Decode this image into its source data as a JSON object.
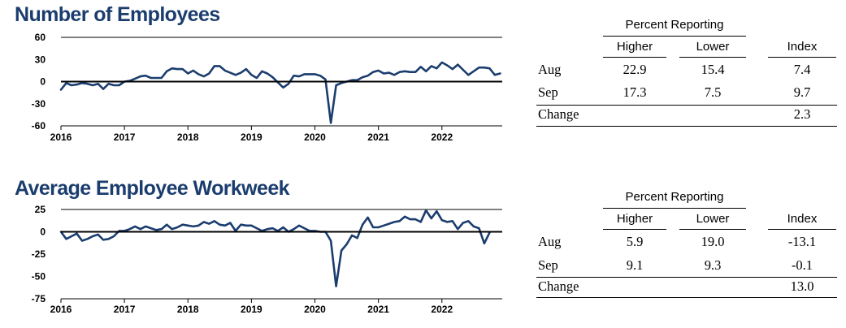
{
  "panels": [
    {
      "title": "Number of Employees",
      "chart_data": {
        "type": "line",
        "title": "Number of Employees",
        "xlabel": "",
        "ylabel": "",
        "ylim": [
          -60,
          60
        ],
        "yticks": [
          60,
          30,
          0,
          -30,
          -60
        ],
        "xlim": [
          2016.0,
          2022.95
        ],
        "xticks": [
          "2016",
          "2017",
          "2018",
          "2019",
          "2020",
          "2021",
          "2022"
        ],
        "zero_line": true,
        "series_color": "#1b3d6e",
        "x_start": "2016-01",
        "x_step": "month",
        "series": [
          {
            "values": [
              -11,
              -2,
              -5,
              -4,
              -2,
              -3,
              -5,
              -3,
              -10,
              -3,
              -5,
              -5,
              0,
              1,
              4,
              7,
              8,
              5,
              5,
              5,
              14,
              18,
              17,
              17,
              11,
              15,
              10,
              7,
              11,
              21,
              21,
              15,
              12,
              9,
              12,
              17,
              9,
              5,
              14,
              11,
              6,
              -1,
              -8,
              -3,
              8,
              7,
              10,
              10,
              10,
              8,
              3,
              -56,
              -5,
              -2,
              0,
              2,
              2,
              6,
              8,
              13,
              15,
              11,
              12,
              9,
              13,
              14,
              13,
              13,
              20,
              14,
              21,
              18,
              26,
              22,
              17,
              23,
              16,
              9,
              14,
              19,
              19,
              18,
              9,
              11
            ]
          }
        ]
      },
      "table": {
        "group_header": "Percent Reporting",
        "col_higher": "Higher",
        "col_lower": "Lower",
        "col_index": "Index",
        "rows": [
          {
            "label": "Aug",
            "higher": "22.9",
            "lower": "15.4",
            "index": "7.4"
          },
          {
            "label": "Sep",
            "higher": "17.3",
            "lower": "7.5",
            "index": "9.7"
          }
        ],
        "change_label": "Change",
        "change_value": "2.3"
      }
    },
    {
      "title": "Average Employee Workweek",
      "chart_data": {
        "type": "line",
        "title": "Average Employee Workweek",
        "xlabel": "",
        "ylabel": "",
        "ylim": [
          -75,
          25
        ],
        "yticks": [
          25,
          0,
          -25,
          -50,
          -75
        ],
        "xlim": [
          2016.0,
          2022.95
        ],
        "xticks": [
          "2016",
          "2017",
          "2018",
          "2019",
          "2020",
          "2021",
          "2022"
        ],
        "zero_line": true,
        "series_color": "#1b3d6e",
        "x_start": "2016-01",
        "x_step": "month",
        "series": [
          {
            "values": [
              0,
              -8,
              -5,
              -2,
              -10,
              -8,
              -5,
              -3,
              -9,
              -8,
              -5,
              1,
              1,
              3,
              6,
              3,
              6,
              4,
              2,
              3,
              8,
              3,
              5,
              8,
              7,
              6,
              7,
              11,
              9,
              12,
              8,
              7,
              10,
              1,
              8,
              7,
              7,
              4,
              1,
              3,
              4,
              1,
              5,
              0,
              3,
              7,
              4,
              1,
              1,
              0,
              0,
              -10,
              -61,
              -21,
              -14,
              -4,
              -7,
              8,
              16,
              5,
              5,
              7,
              9,
              11,
              12,
              17,
              14,
              14,
              11,
              24,
              15,
              23,
              13,
              11,
              12,
              3,
              10,
              12,
              6,
              4,
              -13,
              -1
            ]
          }
        ]
      },
      "table": {
        "group_header": "Percent Reporting",
        "col_higher": "Higher",
        "col_lower": "Lower",
        "col_index": "Index",
        "rows": [
          {
            "label": "Aug",
            "higher": "5.9",
            "lower": "19.0",
            "index": "-13.1"
          },
          {
            "label": "Sep",
            "higher": "9.1",
            "lower": "9.3",
            "index": "-0.1"
          }
        ],
        "change_label": "Change",
        "change_value": "13.0"
      }
    }
  ]
}
